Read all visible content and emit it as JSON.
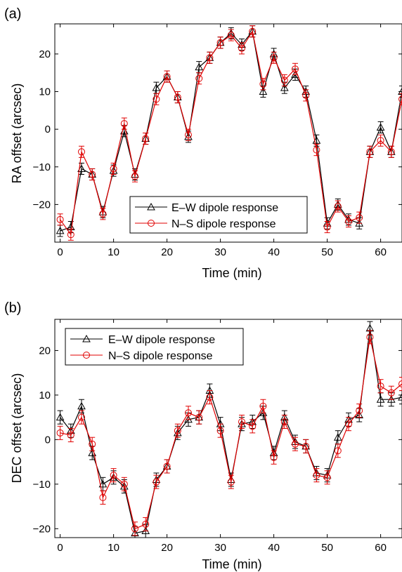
{
  "colors": {
    "ew": "#000000",
    "ns": "#e00000"
  },
  "chart_data": [
    {
      "type": "line",
      "panel_label": "(a)",
      "xlabel": "Time (min)",
      "ylabel": "RA offset (arcsec)",
      "xlim": [
        -1,
        64
      ],
      "ylim": [
        -30,
        28
      ],
      "xticks": [
        0,
        10,
        20,
        30,
        40,
        50,
        60
      ],
      "yticks": [
        -20,
        -10,
        0,
        10,
        20
      ],
      "grid": false,
      "legend_position": "bottom-center",
      "x": [
        0,
        2,
        4,
        6,
        8,
        10,
        12,
        14,
        16,
        18,
        20,
        22,
        24,
        26,
        28,
        30,
        32,
        34,
        36,
        38,
        40,
        42,
        44,
        46,
        48,
        50,
        52,
        54,
        56,
        58,
        60,
        62,
        64
      ],
      "series": [
        {
          "name": "E–W dipole response",
          "marker": "triangle",
          "values": [
            -27,
            -26,
            -10.5,
            -12,
            -22,
            -11,
            -0.5,
            -12,
            -2.5,
            11,
            14,
            8.5,
            -2,
            16.5,
            19,
            23,
            25.5,
            22.5,
            26,
            10,
            20,
            11,
            14.5,
            10,
            -3,
            -25,
            -20,
            -24,
            -25,
            -6,
            0.5,
            -6,
            10
          ],
          "errors": [
            1.5,
            1.5,
            1.5,
            1.5,
            1.5,
            1.5,
            1.5,
            1.5,
            1.5,
            1.5,
            1.5,
            1.5,
            1.5,
            1.5,
            1.5,
            1.5,
            1.5,
            1.5,
            1.5,
            1.5,
            1.5,
            1.5,
            1.5,
            1.5,
            1.5,
            1.5,
            1.5,
            1.5,
            1.5,
            1.5,
            1.5,
            1.5,
            1.5
          ]
        },
        {
          "name": "N–S dipole response",
          "marker": "circle",
          "values": [
            -24,
            -28,
            -6,
            -12,
            -22.5,
            -10.5,
            1.5,
            -12.5,
            -2.5,
            8,
            14,
            8.5,
            -1.5,
            13.5,
            19,
            23,
            25,
            21.5,
            26,
            12,
            19,
            13,
            16,
            9,
            -5.5,
            -26,
            -20.5,
            -24.5,
            -23.5,
            -6,
            -3,
            -6,
            8
          ],
          "errors": [
            1.5,
            1.5,
            1.5,
            1.5,
            1.5,
            1.5,
            1.5,
            1.5,
            1.5,
            1.5,
            1.5,
            1.5,
            1.5,
            1.5,
            1.5,
            1.5,
            1.5,
            1.5,
            1.5,
            1.5,
            1.5,
            1.5,
            1.5,
            1.5,
            1.5,
            1.5,
            1.5,
            1.5,
            1.5,
            1.5,
            1.5,
            1.5,
            1.5
          ]
        }
      ]
    },
    {
      "type": "line",
      "panel_label": "(b)",
      "xlabel": "Time (min)",
      "ylabel": "DEC offset (arcsec)",
      "xlim": [
        -1,
        64
      ],
      "ylim": [
        -22,
        27
      ],
      "xticks": [
        0,
        10,
        20,
        30,
        40,
        50,
        60
      ],
      "yticks": [
        -20,
        -10,
        0,
        10,
        20
      ],
      "grid": false,
      "legend_position": "top-left",
      "x": [
        0,
        2,
        4,
        6,
        8,
        10,
        12,
        14,
        16,
        18,
        20,
        22,
        24,
        26,
        28,
        30,
        32,
        34,
        36,
        38,
        40,
        42,
        44,
        46,
        48,
        50,
        52,
        54,
        56,
        58,
        60,
        62,
        64
      ],
      "series": [
        {
          "name": "E–W dipole response",
          "marker": "triangle",
          "values": [
            5,
            2,
            7.5,
            -3,
            -10,
            -8.5,
            -10.5,
            -21,
            -20.5,
            -9,
            -6,
            1.5,
            4.5,
            5,
            11,
            3.5,
            -9,
            3.5,
            4,
            6,
            -3,
            5,
            -0.5,
            -1.5,
            -7.5,
            -8,
            0.5,
            4.5,
            5.5,
            25,
            9,
            9,
            9.5
          ],
          "errors": [
            1.5,
            1.5,
            1.5,
            1.5,
            1.5,
            1.5,
            1.5,
            1.5,
            1.5,
            1.5,
            1.5,
            1.5,
            1.5,
            1.5,
            1.5,
            1.5,
            1.5,
            1.5,
            1.5,
            1.5,
            1.5,
            1.5,
            1.5,
            1.5,
            1.5,
            1.5,
            1.5,
            1.5,
            1.5,
            1.5,
            1.5,
            1.5,
            1.5
          ]
        },
        {
          "name": "N–S dipole response",
          "marker": "circle",
          "values": [
            1.5,
            1,
            5,
            -1,
            -13,
            -8,
            -10,
            -20,
            -19,
            -9.5,
            -6,
            2,
            6,
            5,
            9.5,
            2,
            -9.5,
            4,
            3,
            7.5,
            -4,
            4,
            -1,
            -1.5,
            -8,
            -8.5,
            -2.5,
            3.5,
            6.5,
            23,
            12,
            10.5,
            12.5
          ],
          "errors": [
            1.5,
            1.5,
            1.5,
            1.5,
            1.5,
            1.5,
            1.5,
            1.5,
            1.5,
            1.5,
            1.5,
            1.5,
            1.5,
            1.5,
            1.5,
            1.5,
            1.5,
            1.5,
            1.5,
            1.5,
            1.5,
            1.5,
            1.5,
            1.5,
            1.5,
            1.5,
            1.5,
            1.5,
            1.5,
            1.5,
            1.5,
            1.5,
            1.5
          ]
        }
      ]
    }
  ]
}
